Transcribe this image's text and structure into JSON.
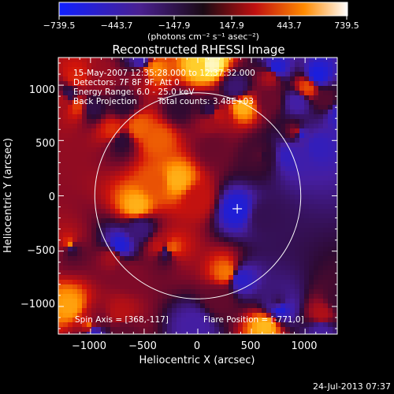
{
  "colorbar": {
    "tick_labels": [
      "−739.5",
      "−443.7",
      "−147.9",
      "147.9",
      "443.7",
      "739.5"
    ],
    "units_label": "(photons cm⁻² s⁻¹ asec⁻²)",
    "range": [
      -739.5,
      739.5
    ]
  },
  "chart_data": {
    "type": "heatmap",
    "title": "Reconstructed RHESSI Image",
    "xlabel": "Heliocentric X (arcsec)",
    "ylabel": "Heliocentric Y (arcsec)",
    "xlim": [
      -1300,
      1300
    ],
    "ylim": [
      -1250,
      1250
    ],
    "x_ticks": [
      -1000,
      -500,
      0,
      500,
      1000
    ],
    "y_ticks": [
      -1000,
      -500,
      0,
      500,
      1000
    ],
    "x_tick_labels": [
      "−1000",
      "−500",
      "0",
      "500",
      "1000"
    ],
    "y_tick_labels": [
      "−1000",
      "−500",
      "0",
      "500",
      "1000"
    ],
    "solar_limb": {
      "center": [
        0,
        0
      ],
      "radius_arcsec": 960
    },
    "marker": {
      "symbol": "+",
      "x": 368,
      "y": -117
    },
    "colormap": "blue-purple-red-yellow-white",
    "annotations": {
      "time_range": "15-May-2007 12:35:28.000 to 12:37:32.000",
      "detectors": "Detectors: 7F 8F 9F, Att 0",
      "energy_range": "Energy Range: 6.0 - 25.0 keV",
      "method": "Back Projection",
      "total_counts": "Total counts: 3.48E+03",
      "spin_axis": "Spin Axis = [368,-117]",
      "flare_position": "Flare Position = [-771,0]"
    },
    "grid": false
  },
  "footer": {
    "timestamp": "24-Jul-2013 07:37"
  }
}
